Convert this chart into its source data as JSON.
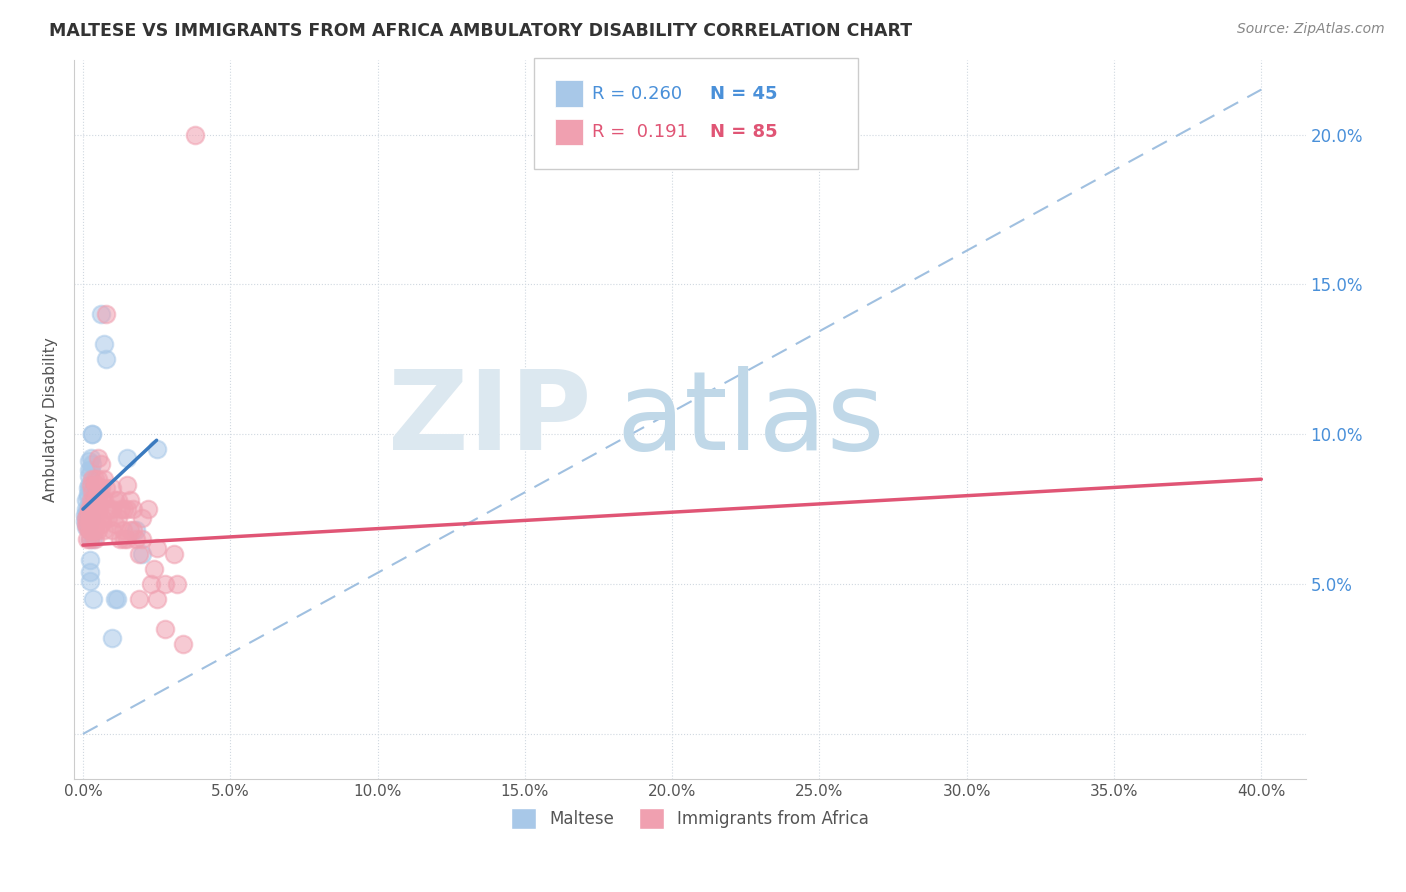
{
  "title": "MALTESE VS IMMIGRANTS FROM AFRICA AMBULATORY DISABILITY CORRELATION CHART",
  "source": "Source: ZipAtlas.com",
  "ylabel": "Ambulatory Disability",
  "maltese_color": "#a8c8e8",
  "africa_color": "#f0a0b0",
  "trendline_maltese_color": "#3a7abf",
  "trendline_africa_color": "#e05575",
  "diagonal_color": "#a0c0e0",
  "watermark_zip_color": "#dce8f0",
  "watermark_atlas_color": "#c0d8e8",
  "maltese_points": [
    [
      0.0008,
      0.073
    ],
    [
      0.0008,
      0.071
    ],
    [
      0.001,
      0.075
    ],
    [
      0.0012,
      0.078
    ],
    [
      0.0012,
      0.069
    ],
    [
      0.0015,
      0.071
    ],
    [
      0.0015,
      0.074
    ],
    [
      0.0015,
      0.073
    ],
    [
      0.0018,
      0.08
    ],
    [
      0.0018,
      0.082
    ],
    [
      0.0018,
      0.079
    ],
    [
      0.002,
      0.076
    ],
    [
      0.002,
      0.075
    ],
    [
      0.002,
      0.072
    ],
    [
      0.002,
      0.086
    ],
    [
      0.0022,
      0.091
    ],
    [
      0.0022,
      0.083
    ],
    [
      0.0022,
      0.088
    ],
    [
      0.0022,
      0.07
    ],
    [
      0.0022,
      0.073
    ],
    [
      0.0025,
      0.082
    ],
    [
      0.0025,
      0.072
    ],
    [
      0.0025,
      0.077
    ],
    [
      0.0025,
      0.065
    ],
    [
      0.0025,
      0.058
    ],
    [
      0.0025,
      0.054
    ],
    [
      0.0025,
      0.051
    ],
    [
      0.0028,
      0.092
    ],
    [
      0.0028,
      0.088
    ],
    [
      0.0028,
      0.072
    ],
    [
      0.003,
      0.1
    ],
    [
      0.003,
      0.1
    ],
    [
      0.003,
      0.09
    ],
    [
      0.0035,
      0.065
    ],
    [
      0.0035,
      0.045
    ],
    [
      0.006,
      0.14
    ],
    [
      0.007,
      0.13
    ],
    [
      0.008,
      0.125
    ],
    [
      0.01,
      0.032
    ],
    [
      0.011,
      0.045
    ],
    [
      0.0115,
      0.045
    ],
    [
      0.015,
      0.092
    ],
    [
      0.018,
      0.068
    ],
    [
      0.02,
      0.06
    ],
    [
      0.025,
      0.095
    ]
  ],
  "africa_points": [
    [
      0.001,
      0.072
    ],
    [
      0.0012,
      0.07
    ],
    [
      0.0015,
      0.069
    ],
    [
      0.0015,
      0.065
    ],
    [
      0.0018,
      0.073
    ],
    [
      0.002,
      0.075
    ],
    [
      0.002,
      0.071
    ],
    [
      0.002,
      0.068
    ],
    [
      0.0022,
      0.074
    ],
    [
      0.0022,
      0.07
    ],
    [
      0.0025,
      0.073
    ],
    [
      0.0025,
      0.068
    ],
    [
      0.0025,
      0.065
    ],
    [
      0.0028,
      0.083
    ],
    [
      0.0028,
      0.078
    ],
    [
      0.0028,
      0.072
    ],
    [
      0.003,
      0.085
    ],
    [
      0.003,
      0.081
    ],
    [
      0.003,
      0.075
    ],
    [
      0.003,
      0.071
    ],
    [
      0.003,
      0.068
    ],
    [
      0.0035,
      0.078
    ],
    [
      0.0035,
      0.073
    ],
    [
      0.0035,
      0.068
    ],
    [
      0.004,
      0.085
    ],
    [
      0.004,
      0.083
    ],
    [
      0.004,
      0.078
    ],
    [
      0.004,
      0.074
    ],
    [
      0.004,
      0.071
    ],
    [
      0.004,
      0.068
    ],
    [
      0.004,
      0.065
    ],
    [
      0.0045,
      0.083
    ],
    [
      0.0045,
      0.078
    ],
    [
      0.005,
      0.092
    ],
    [
      0.005,
      0.085
    ],
    [
      0.005,
      0.078
    ],
    [
      0.005,
      0.073
    ],
    [
      0.005,
      0.068
    ],
    [
      0.0055,
      0.082
    ],
    [
      0.0055,
      0.075
    ],
    [
      0.006,
      0.09
    ],
    [
      0.006,
      0.082
    ],
    [
      0.006,
      0.07
    ],
    [
      0.0065,
      0.078
    ],
    [
      0.0065,
      0.072
    ],
    [
      0.007,
      0.085
    ],
    [
      0.007,
      0.078
    ],
    [
      0.007,
      0.068
    ],
    [
      0.008,
      0.14
    ],
    [
      0.008,
      0.082
    ],
    [
      0.0085,
      0.072
    ],
    [
      0.009,
      0.075
    ],
    [
      0.01,
      0.082
    ],
    [
      0.01,
      0.075
    ],
    [
      0.01,
      0.068
    ],
    [
      0.011,
      0.078
    ],
    [
      0.011,
      0.07
    ],
    [
      0.012,
      0.078
    ],
    [
      0.012,
      0.072
    ],
    [
      0.0125,
      0.065
    ],
    [
      0.013,
      0.075
    ],
    [
      0.0135,
      0.068
    ],
    [
      0.014,
      0.075
    ],
    [
      0.014,
      0.065
    ],
    [
      0.015,
      0.083
    ],
    [
      0.015,
      0.075
    ],
    [
      0.015,
      0.065
    ],
    [
      0.016,
      0.078
    ],
    [
      0.016,
      0.068
    ],
    [
      0.017,
      0.075
    ],
    [
      0.017,
      0.068
    ],
    [
      0.018,
      0.065
    ],
    [
      0.019,
      0.06
    ],
    [
      0.019,
      0.045
    ],
    [
      0.02,
      0.072
    ],
    [
      0.02,
      0.065
    ],
    [
      0.022,
      0.075
    ],
    [
      0.023,
      0.05
    ],
    [
      0.024,
      0.055
    ],
    [
      0.025,
      0.062
    ],
    [
      0.025,
      0.045
    ],
    [
      0.028,
      0.035
    ],
    [
      0.028,
      0.05
    ],
    [
      0.031,
      0.06
    ],
    [
      0.032,
      0.05
    ],
    [
      0.034,
      0.03
    ],
    [
      0.038,
      0.2
    ]
  ],
  "x_tick_vals": [
    0.0,
    0.05,
    0.1,
    0.15,
    0.2,
    0.25,
    0.3,
    0.35,
    0.4
  ],
  "x_tick_labels": [
    "0.0%",
    "5.0%",
    "10.0%",
    "15.0%",
    "20.0%",
    "25.0%",
    "30.0%",
    "35.0%",
    "40.0%"
  ],
  "y_tick_vals": [
    0.0,
    0.05,
    0.1,
    0.15,
    0.2
  ],
  "y_tick_labels_right": [
    "",
    "5.0%",
    "10.0%",
    "15.0%",
    "20.0%"
  ],
  "xlim": [
    -0.003,
    0.415
  ],
  "ylim": [
    -0.015,
    0.225
  ]
}
